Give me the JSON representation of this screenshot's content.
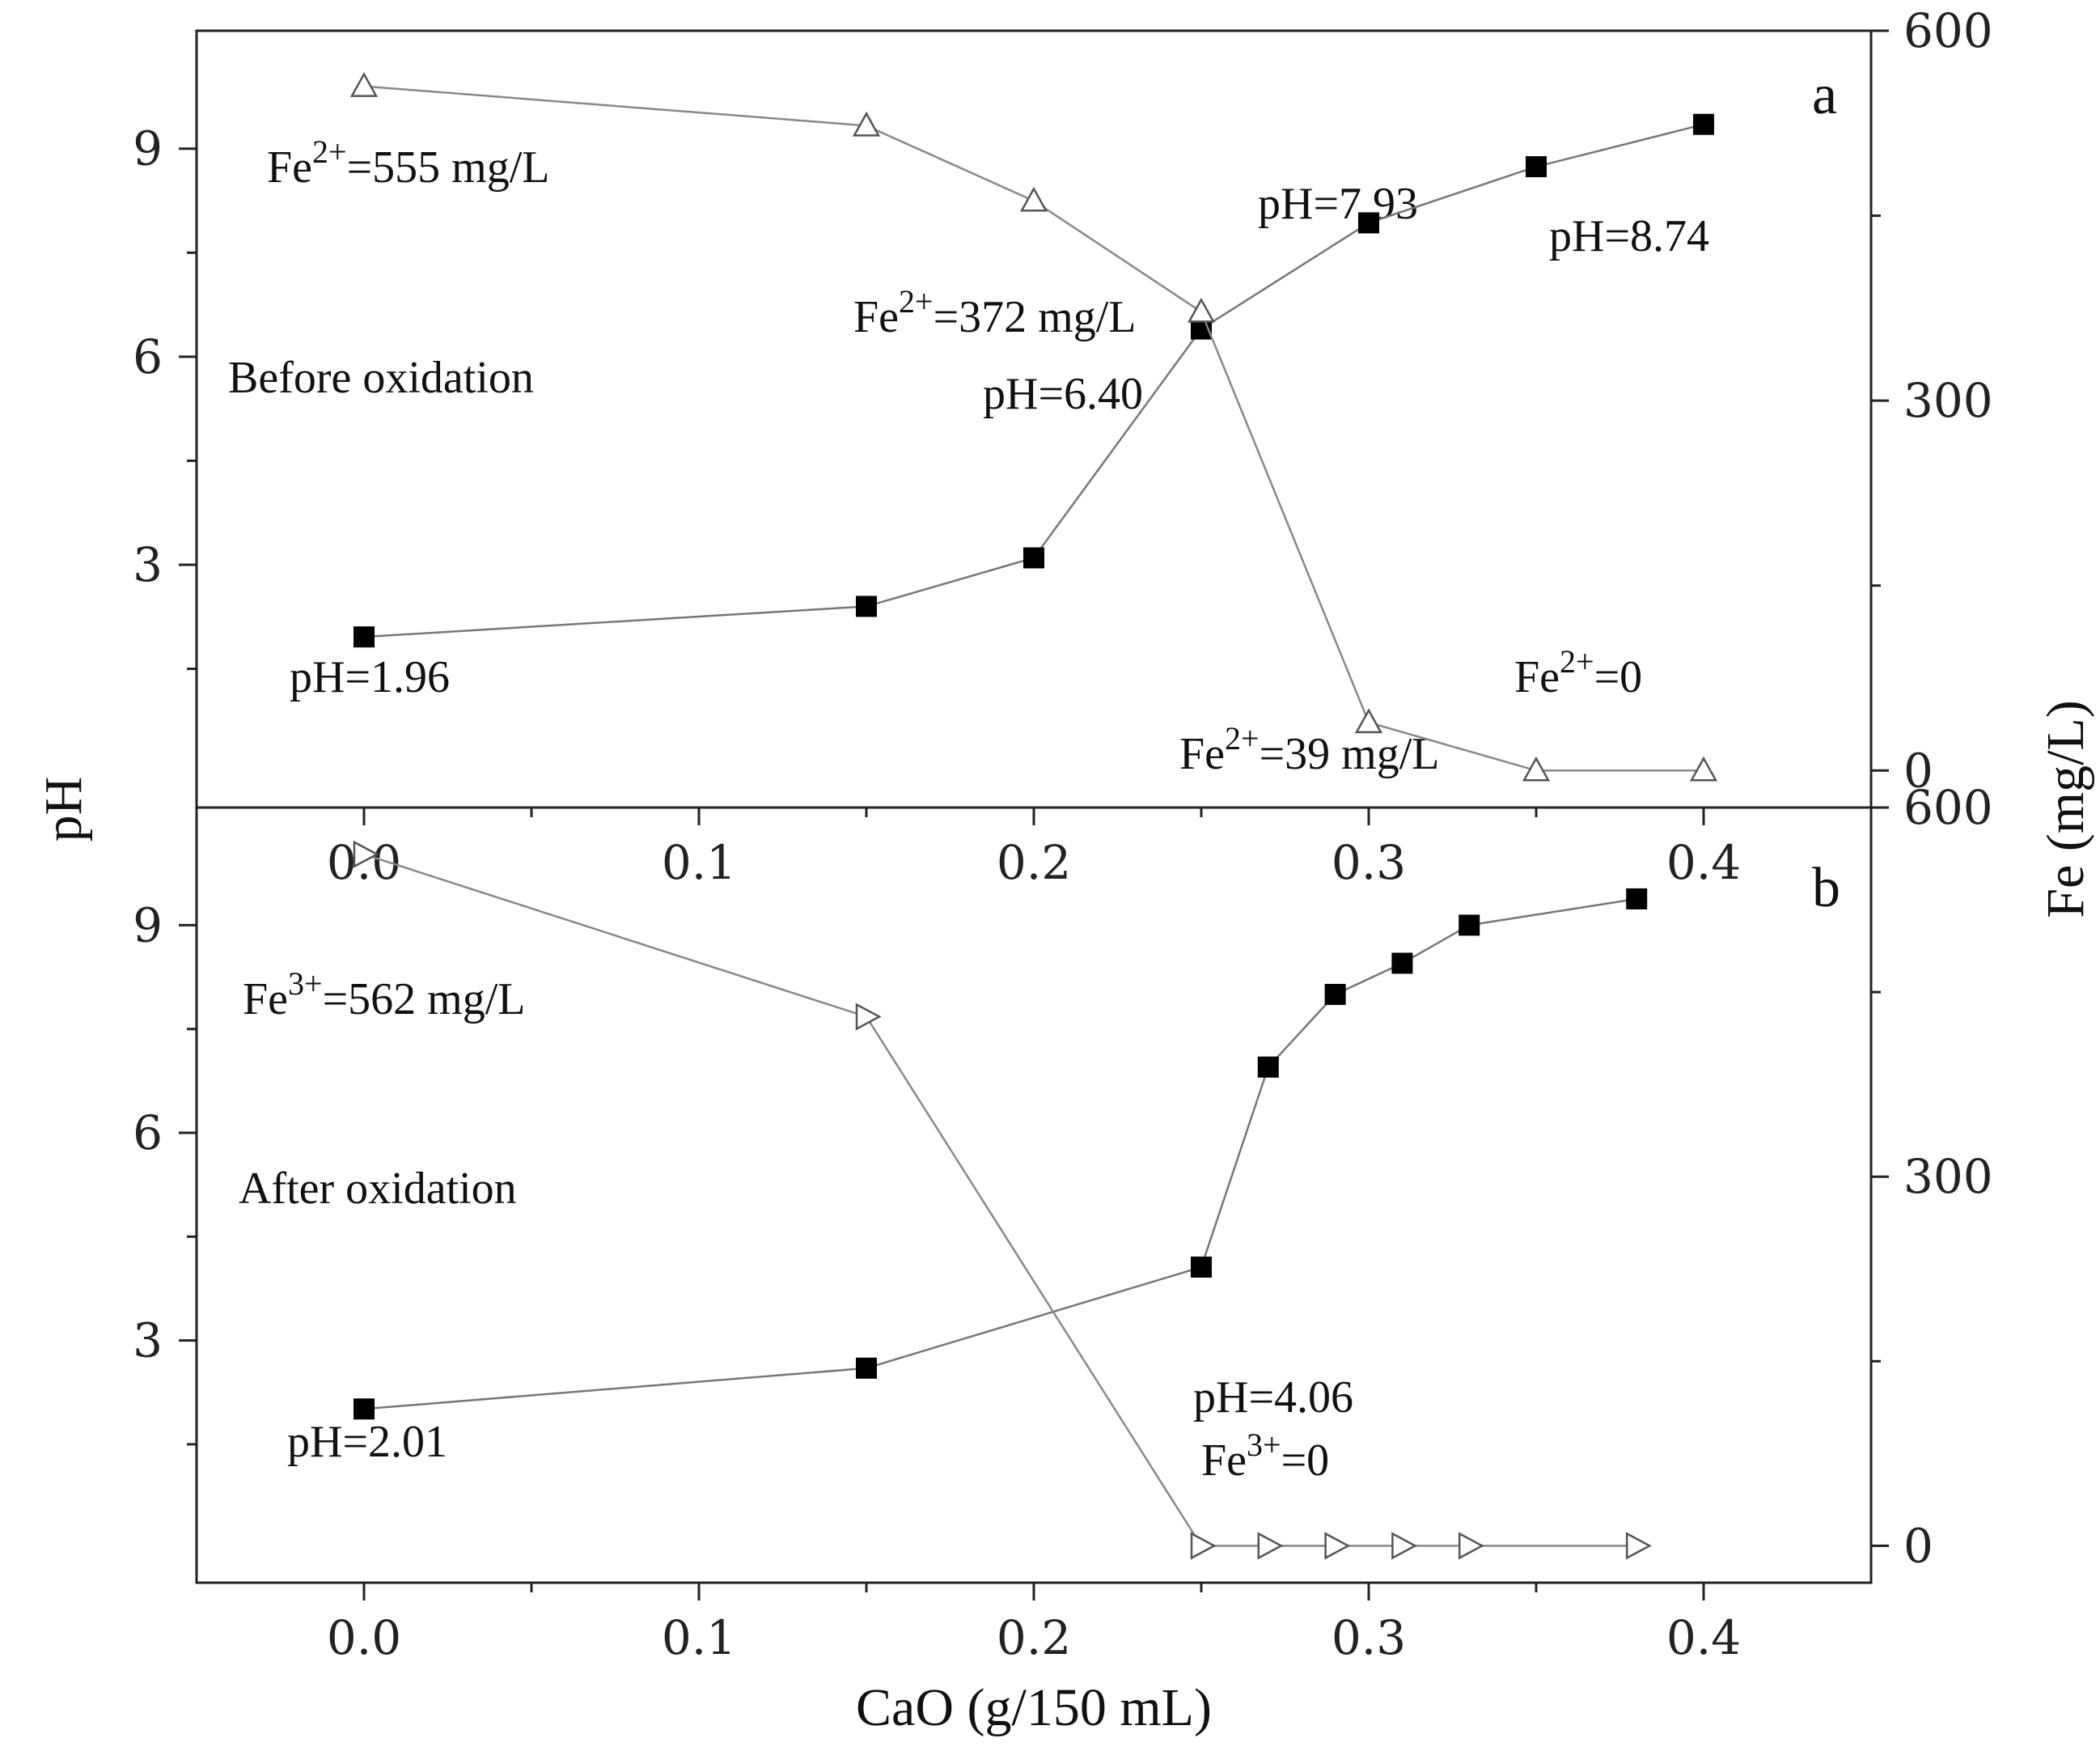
{
  "chart_data": {
    "type": "line",
    "xlabel": "CaO (g/150 mL)",
    "ylabel_left": "pH",
    "ylabel_right": "Fe (mg/L)",
    "xlim": [
      -0.05,
      0.45
    ],
    "xticks": [
      "0.0",
      "0.1",
      "0.2",
      "0.3",
      "0.4"
    ],
    "panels": [
      {
        "label": "a",
        "note": "Before oxidation",
        "ph_ylim": [
          -0.5,
          10.7
        ],
        "fe_ylim": [
          -30,
          600
        ],
        "ph_ticks": [
          "3",
          "6",
          "9"
        ],
        "fe_ticks": [
          "0",
          "300",
          "600"
        ],
        "series": [
          {
            "axis": "left",
            "marker": "filled-square",
            "x": [
              0.0,
              0.15,
              0.2,
              0.25,
              0.3,
              0.35,
              0.4
            ],
            "y": [
              1.96,
              2.4,
              3.1,
              6.4,
              7.93,
              8.74,
              9.35
            ]
          },
          {
            "axis": "right",
            "marker": "open-triangle-up",
            "x": [
              0.0,
              0.15,
              0.2,
              0.25,
              0.3,
              0.35,
              0.4
            ],
            "y": [
              555,
              523,
              462,
              372,
              39,
              0,
              0
            ]
          }
        ],
        "annotations": [
          {
            "text": "Fe",
            "sup": "2+",
            "rest": "=555 mg/L"
          },
          {
            "text": "Fe",
            "sup": "2+",
            "rest": "=372 mg/L"
          },
          {
            "text": "Fe",
            "sup": "2+",
            "rest": "=39 mg/L"
          },
          {
            "text": "Fe",
            "sup": "2+",
            "rest": "=0"
          },
          {
            "text": "pH=1.96",
            "sup": "",
            "rest": ""
          },
          {
            "text": "pH=6.40",
            "sup": "",
            "rest": ""
          },
          {
            "text": "pH=7.93",
            "sup": "",
            "rest": ""
          },
          {
            "text": "pH=8.74",
            "sup": "",
            "rest": ""
          }
        ]
      },
      {
        "label": "b",
        "note": "After oxidation",
        "ph_ylim": [
          -0.5,
          10.7
        ],
        "fe_ylim": [
          -30,
          600
        ],
        "ph_ticks": [
          "3",
          "6",
          "9"
        ],
        "fe_ticks": [
          "0",
          "300",
          "600"
        ],
        "series": [
          {
            "axis": "left",
            "marker": "filled-square",
            "x": [
              0.0,
              0.15,
              0.25,
              0.27,
              0.29,
              0.31,
              0.33,
              0.38
            ],
            "y": [
              2.01,
              2.6,
              4.06,
              6.95,
              8.0,
              8.45,
              9.0,
              9.38
            ]
          },
          {
            "axis": "right",
            "marker": "open-triangle-right",
            "x": [
              0.0,
              0.15,
              0.25,
              0.27,
              0.29,
              0.31,
              0.33,
              0.38
            ],
            "y": [
              562,
              430,
              0,
              0,
              0,
              0,
              0,
              0
            ]
          }
        ],
        "annotations": [
          {
            "text": "Fe",
            "sup": "3+",
            "rest": "=562 mg/L"
          },
          {
            "text": "Fe",
            "sup": "3+",
            "rest": "=0"
          },
          {
            "text": "pH=2.01",
            "sup": "",
            "rest": ""
          },
          {
            "text": "pH=4.06",
            "sup": "",
            "rest": ""
          }
        ]
      }
    ]
  }
}
